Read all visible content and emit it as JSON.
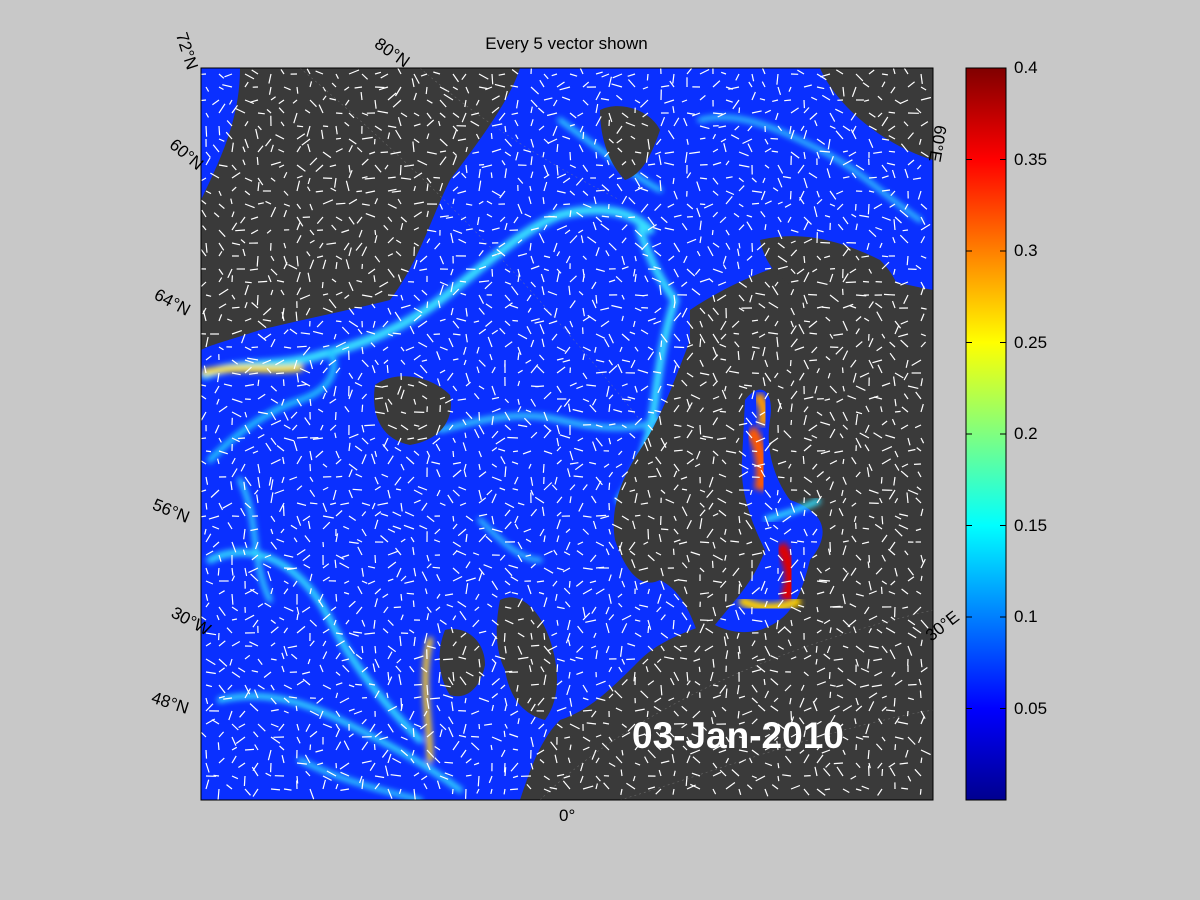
{
  "title": "Every 5 vector shown",
  "date_label": "03-Jan-2010",
  "grid_labels": {
    "lat_72": "72°N",
    "lat_80": "80°N",
    "lat_60_top": "60°N",
    "lat_64": "64°N",
    "lat_56": "56°N",
    "lon_30w": "30°W",
    "lat_48": "48°N",
    "lon_0": "0°",
    "lon_60e": "60°E",
    "lon_30e": "30°E"
  },
  "colorbar": {
    "min": 0,
    "max": 0.4,
    "ticks": [
      "0.4",
      "0.35",
      "0.3",
      "0.25",
      "0.2",
      "0.15",
      "0.1",
      "0.05"
    ],
    "tick_values": [
      0.4,
      0.35,
      0.3,
      0.25,
      0.2,
      0.15,
      0.1,
      0.05
    ],
    "colormap": "jet"
  },
  "colors": {
    "background": "#c8c8c8",
    "land": "#3a3a3a",
    "sea_low": "#0a28ff",
    "vector": "#ffffff"
  }
}
